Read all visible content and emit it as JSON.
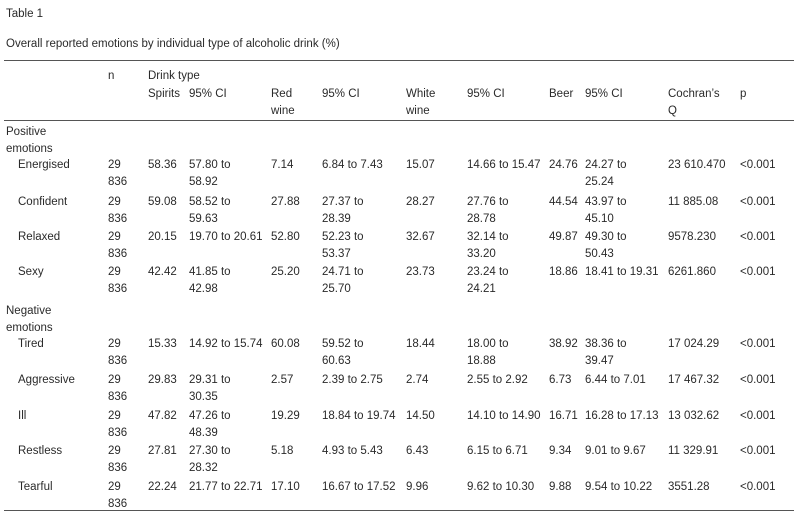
{
  "caption": "Table 1",
  "title": "Overall reported emotions by individual type of alcoholic drink (%)",
  "header": {
    "n": "n",
    "drink_type": "Drink type",
    "columns": [
      "Spirits",
      "95% CI",
      "Red\nwine",
      "95% CI",
      "White\nwine",
      "95% CI",
      "Beer",
      "95% CI",
      "Cochran’s\nQ",
      "p"
    ]
  },
  "groups": [
    {
      "label": "Positive\nemotions",
      "rows": [
        {
          "label": "Energised",
          "cells": [
            "29\n836",
            "58.36",
            "57.80 to\n58.92",
            "7.14",
            "6.84 to 7.43",
            "15.07",
            "14.66 to 15.47",
            "24.76",
            "24.27 to\n25.24",
            "23 610.470",
            "<0.001"
          ]
        },
        {
          "label": "Confident",
          "cells": [
            "29\n836",
            "59.08",
            "58.52 to\n59.63",
            "27.88",
            "27.37 to\n28.39",
            "28.27",
            "27.76 to\n28.78",
            "44.54",
            "43.97 to\n45.10",
            "11 885.08",
            "<0.001"
          ]
        },
        {
          "label": "Relaxed",
          "cells": [
            "29\n836",
            "20.15",
            "19.70 to 20.61",
            "52.80",
            "52.23 to\n53.37",
            "32.67",
            "32.14 to\n33.20",
            "49.87",
            "49.30 to\n50.43",
            "9578.230",
            "<0.001"
          ]
        },
        {
          "label": "Sexy",
          "cells": [
            "29\n836",
            "42.42",
            "41.85 to\n42.98",
            "25.20",
            "24.71 to\n25.70",
            "23.73",
            "23.24 to\n24.21",
            "18.86",
            "18.41 to 19.31",
            "6261.860",
            "<0.001"
          ]
        }
      ]
    },
    {
      "label": "Negative\nemotions",
      "rows": [
        {
          "label": "Tired",
          "cells": [
            "29\n836",
            "15.33",
            "14.92 to 15.74",
            "60.08",
            "59.52 to\n60.63",
            "18.44",
            "18.00 to\n18.88",
            "38.92",
            "38.36 to\n39.47",
            "17 024.29",
            "<0.001"
          ]
        },
        {
          "label": "Aggressive",
          "cells": [
            "29\n836",
            "29.83",
            "29.31 to\n30.35",
            "2.57",
            "2.39 to 2.75",
            "2.74",
            "2.55 to 2.92",
            "6.73",
            "6.44 to 7.01",
            "17 467.32",
            "<0.001"
          ]
        },
        {
          "label": "Ill",
          "cells": [
            "29\n836",
            "47.82",
            "47.26 to\n48.39",
            "19.29",
            "18.84 to 19.74",
            "14.50",
            "14.10 to 14.90",
            "16.71",
            "16.28 to 17.13",
            "13 032.62",
            "<0.001"
          ]
        },
        {
          "label": "Restless",
          "cells": [
            "29\n836",
            "27.81",
            "27.30 to\n28.32",
            "5.18",
            "4.93 to 5.43",
            "6.43",
            "6.15 to 6.71",
            "9.34",
            "9.01 to 9.67",
            "11 329.91",
            "<0.001"
          ]
        },
        {
          "label": "Tearful",
          "cells": [
            "29\n836",
            "22.24",
            "21.77 to 22.71",
            "17.10",
            "16.67 to 17.52",
            "9.96",
            "9.62 to 10.30",
            "9.88",
            "9.54 to 10.22",
            "3551.28",
            "<0.001"
          ]
        }
      ]
    }
  ]
}
